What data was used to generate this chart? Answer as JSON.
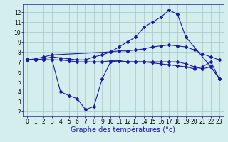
{
  "line1_x": [
    0,
    1,
    2,
    3,
    10,
    11,
    12,
    13,
    14,
    15,
    16,
    17,
    18,
    19,
    22,
    23
  ],
  "line1_y": [
    7.2,
    7.3,
    7.5,
    7.7,
    8.0,
    8.5,
    9.0,
    9.5,
    10.5,
    11.0,
    11.5,
    12.2,
    11.8,
    9.5,
    6.5,
    5.3
  ],
  "line2_x": [
    0,
    1,
    2,
    3,
    4,
    5,
    6,
    7,
    8,
    9,
    10,
    11,
    12,
    13,
    14,
    15,
    16,
    17,
    18,
    19,
    20,
    21,
    22,
    23
  ],
  "line2_y": [
    7.2,
    7.2,
    7.3,
    7.5,
    7.4,
    7.3,
    7.2,
    7.2,
    7.5,
    7.7,
    8.0,
    8.1,
    8.1,
    8.2,
    8.3,
    8.5,
    8.6,
    8.7,
    8.6,
    8.5,
    8.2,
    7.8,
    7.5,
    7.2
  ],
  "line3_x": [
    0,
    1,
    2,
    3,
    4,
    5,
    6,
    7,
    8,
    9,
    10,
    11,
    12,
    13,
    14,
    15,
    16,
    17,
    18,
    19,
    20,
    21,
    22,
    23
  ],
  "line3_y": [
    7.2,
    7.2,
    7.2,
    7.2,
    4.0,
    3.6,
    3.3,
    2.2,
    2.5,
    5.3,
    7.0,
    7.1,
    7.0,
    7.0,
    7.0,
    7.0,
    7.0,
    7.0,
    7.0,
    6.8,
    6.5,
    6.3,
    6.5,
    5.3
  ],
  "line4_x": [
    0,
    1,
    2,
    3,
    4,
    5,
    6,
    7,
    8,
    9,
    10,
    11,
    12,
    13,
    14,
    15,
    16,
    17,
    18,
    19,
    20,
    21,
    22,
    23
  ],
  "line4_y": [
    7.2,
    7.2,
    7.2,
    7.2,
    7.2,
    7.1,
    7.0,
    7.0,
    7.0,
    7.0,
    7.1,
    7.1,
    7.0,
    7.0,
    7.0,
    6.9,
    6.8,
    6.7,
    6.6,
    6.5,
    6.3,
    6.5,
    7.0,
    5.3
  ],
  "line_color": "#1a1aaa",
  "marker": "D",
  "markersize": 2.0,
  "xlabel": "Graphe des températures (°c)",
  "xlim": [
    -0.5,
    23.5
  ],
  "ylim": [
    1.5,
    12.8
  ],
  "xticks": [
    0,
    1,
    2,
    3,
    4,
    5,
    6,
    7,
    8,
    9,
    10,
    11,
    12,
    13,
    14,
    15,
    16,
    17,
    18,
    19,
    20,
    21,
    22,
    23
  ],
  "yticks": [
    2,
    3,
    4,
    5,
    6,
    7,
    8,
    9,
    10,
    11,
    12
  ],
  "bg_color": "#d4eeee",
  "grid_color": "#a0c8c8",
  "axis_label_fontsize": 7,
  "tick_fontsize": 5.5
}
